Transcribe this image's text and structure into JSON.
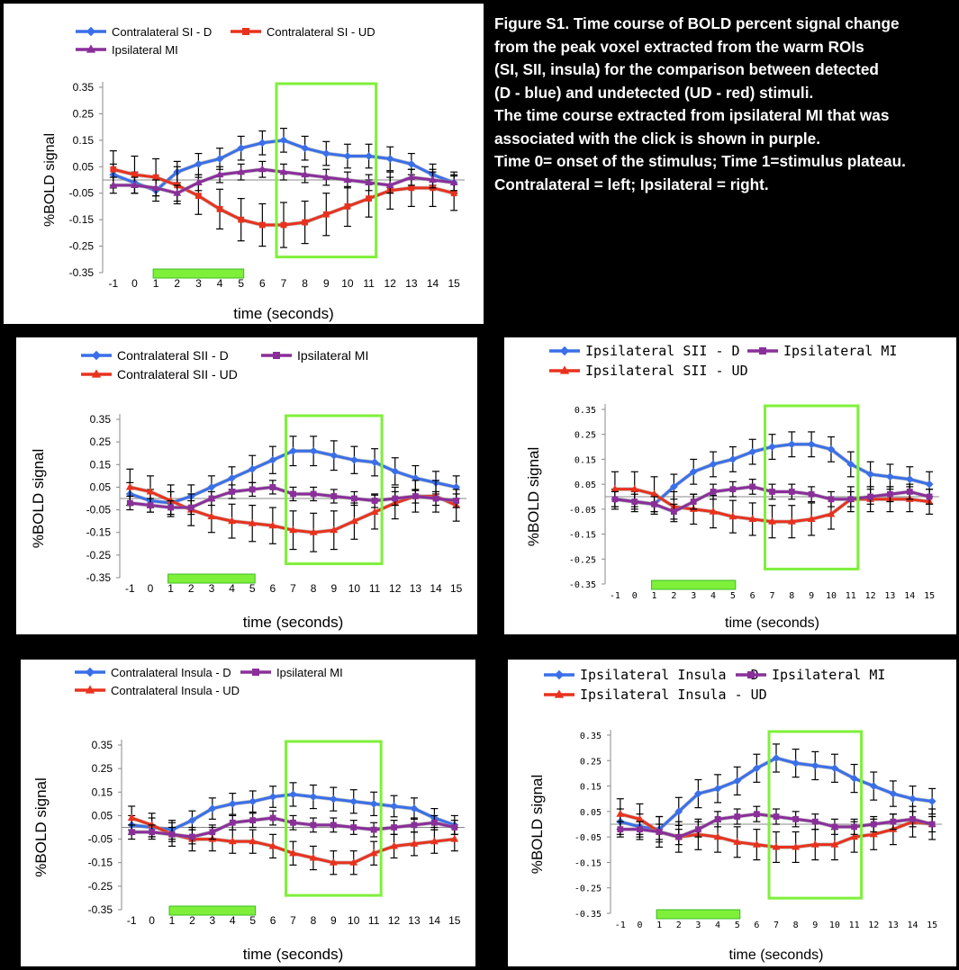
{
  "caption": {
    "lines": [
      "Figure S1. Time course of BOLD percent signal change",
      "from the peak voxel extracted from the warm ROIs",
      "(SI, SII, insula) for the comparison between  detected",
      "(D - blue) and undetected (UD - red) stimuli.",
      "The time course extracted from ipsilateral MI that was",
      "associated  with the click is shown in purple.",
      "Time 0= onset of the  stimulus; Time 1=stimulus plateau.",
      "Contralateral = left; Ipsilateral = right."
    ]
  },
  "colors": {
    "blue": "#3a6fe8",
    "red": "#e8321e",
    "purple": "#8a2f9a",
    "green": "#7ef03a",
    "errorbar": "#000000"
  },
  "chart_data": [
    {
      "id": "sI",
      "type": "line",
      "ylabel": "%BOLD signal",
      "xlabel": "time (seconds)",
      "ylim": [
        -0.35,
        0.35
      ],
      "yticks": [
        "0.35",
        "0.25",
        "0.15",
        "0.05",
        "-0.05",
        "-0.15",
        "-0.25",
        "-0.35"
      ],
      "x": [
        -1,
        0,
        1,
        2,
        3,
        4,
        5,
        6,
        7,
        8,
        9,
        10,
        11,
        12,
        13,
        14,
        15
      ],
      "stimulus_bar": [
        1,
        5
      ],
      "highlight_window": [
        7,
        11
      ],
      "series": [
        {
          "name": "Contralateral SI - D",
          "color": "blue",
          "marker": "diamond",
          "values": [
            0.02,
            -0.01,
            -0.04,
            0.03,
            0.06,
            0.08,
            0.12,
            0.14,
            0.15,
            0.12,
            0.1,
            0.09,
            0.09,
            0.08,
            0.06,
            0.02,
            -0.01
          ],
          "err": [
            0.04,
            0.04,
            0.04,
            0.04,
            0.04,
            0.04,
            0.045,
            0.045,
            0.045,
            0.045,
            0.045,
            0.045,
            0.045,
            0.045,
            0.04,
            0.04,
            0.04
          ]
        },
        {
          "name": "Contralateral SI - UD",
          "color": "red",
          "marker": "square",
          "values": [
            0.04,
            0.02,
            0.01,
            -0.02,
            -0.06,
            -0.11,
            -0.15,
            -0.17,
            -0.17,
            -0.16,
            -0.13,
            -0.1,
            -0.07,
            -0.04,
            -0.03,
            -0.03,
            -0.05
          ],
          "err": [
            0.07,
            0.07,
            0.07,
            0.07,
            0.07,
            0.075,
            0.08,
            0.08,
            0.085,
            0.08,
            0.08,
            0.075,
            0.07,
            0.07,
            0.07,
            0.07,
            0.065
          ]
        },
        {
          "name": "Ipsilateral MI",
          "color": "purple",
          "marker": "triangle",
          "values": [
            -0.02,
            -0.02,
            -0.03,
            -0.05,
            -0.01,
            0.02,
            0.03,
            0.04,
            0.03,
            0.02,
            0.01,
            0.0,
            -0.01,
            -0.02,
            0.01,
            0.0,
            -0.01
          ],
          "err": [
            0.03,
            0.03,
            0.03,
            0.03,
            0.03,
            0.03,
            0.03,
            0.03,
            0.03,
            0.03,
            0.03,
            0.03,
            0.03,
            0.03,
            0.03,
            0.03,
            0.03
          ]
        }
      ]
    },
    {
      "id": "cSII",
      "type": "line",
      "ylabel": "%BOLD signal",
      "xlabel": "time (seconds)",
      "ylim": [
        -0.35,
        0.35
      ],
      "yticks": [
        "0.35",
        "0.25",
        "0.15",
        "0.05",
        "-0.05",
        "-0.15",
        "-0.25",
        "-0.35"
      ],
      "x": [
        -1,
        0,
        1,
        2,
        3,
        4,
        5,
        6,
        7,
        8,
        9,
        10,
        11,
        12,
        13,
        14,
        15
      ],
      "stimulus_bar": [
        1,
        5
      ],
      "highlight_window": [
        7,
        11
      ],
      "series": [
        {
          "name": "Contralateral SII - D",
          "color": "blue",
          "marker": "diamond",
          "values": [
            0.02,
            -0.01,
            -0.02,
            0.01,
            0.05,
            0.09,
            0.13,
            0.17,
            0.21,
            0.21,
            0.19,
            0.17,
            0.16,
            0.12,
            0.09,
            0.07,
            0.05
          ],
          "err": [
            0.05,
            0.05,
            0.05,
            0.05,
            0.05,
            0.05,
            0.06,
            0.06,
            0.065,
            0.065,
            0.065,
            0.06,
            0.06,
            0.06,
            0.055,
            0.05,
            0.05
          ]
        },
        {
          "name": "Contralateral SII - UD",
          "color": "red",
          "marker": "triangle",
          "values": [
            0.05,
            0.03,
            -0.01,
            -0.05,
            -0.08,
            -0.1,
            -0.11,
            -0.12,
            -0.14,
            -0.15,
            -0.14,
            -0.1,
            -0.06,
            -0.02,
            0.01,
            0.01,
            -0.03
          ],
          "err": [
            0.08,
            0.07,
            0.07,
            0.07,
            0.07,
            0.075,
            0.08,
            0.08,
            0.085,
            0.085,
            0.085,
            0.08,
            0.075,
            0.07,
            0.07,
            0.07,
            0.07
          ]
        },
        {
          "name": "Ipsilateral MI",
          "color": "purple",
          "marker": "square",
          "values": [
            -0.02,
            -0.03,
            -0.04,
            -0.04,
            0.0,
            0.03,
            0.04,
            0.05,
            0.02,
            0.02,
            0.01,
            0.0,
            -0.01,
            0.0,
            0.01,
            0.0,
            -0.01
          ],
          "err": [
            0.03,
            0.03,
            0.03,
            0.03,
            0.03,
            0.03,
            0.03,
            0.03,
            0.03,
            0.03,
            0.03,
            0.03,
            0.03,
            0.03,
            0.03,
            0.03,
            0.03
          ]
        }
      ]
    },
    {
      "id": "iSII",
      "type": "line",
      "ylabel": "%BOLD signal",
      "xlabel": "time (seconds)",
      "ylim": [
        -0.35,
        0.35
      ],
      "yticks": [
        "0.35",
        "0.25",
        "0.15",
        "0.05",
        "-0.05",
        "-0.15",
        "-0.25",
        "-0.35"
      ],
      "x": [
        -1,
        0,
        1,
        2,
        3,
        4,
        5,
        6,
        7,
        8,
        9,
        10,
        11,
        12,
        13,
        14,
        15
      ],
      "stimulus_bar": [
        1,
        5
      ],
      "highlight_window": [
        7,
        11
      ],
      "series": [
        {
          "name": "Ipsilateral SII - D",
          "color": "blue",
          "marker": "diamond",
          "values": [
            -0.01,
            -0.02,
            -0.03,
            0.04,
            0.1,
            0.13,
            0.15,
            0.18,
            0.2,
            0.21,
            0.21,
            0.19,
            0.13,
            0.09,
            0.08,
            0.07,
            0.05
          ],
          "err": [
            0.04,
            0.04,
            0.04,
            0.05,
            0.05,
            0.05,
            0.05,
            0.05,
            0.05,
            0.05,
            0.05,
            0.05,
            0.05,
            0.05,
            0.05,
            0.05,
            0.05
          ]
        },
        {
          "name": "Ipsilateral SII - UD",
          "color": "red",
          "marker": "triangle",
          "values": [
            0.03,
            0.03,
            0.01,
            -0.04,
            -0.05,
            -0.06,
            -0.08,
            -0.09,
            -0.1,
            -0.1,
            -0.09,
            -0.07,
            -0.01,
            -0.01,
            -0.01,
            -0.01,
            -0.02
          ],
          "err": [
            0.07,
            0.07,
            0.07,
            0.06,
            0.06,
            0.065,
            0.065,
            0.065,
            0.065,
            0.065,
            0.065,
            0.06,
            0.05,
            0.05,
            0.05,
            0.05,
            0.05
          ]
        },
        {
          "name": "Ipsilateral MI",
          "color": "purple",
          "marker": "square",
          "values": [
            -0.01,
            -0.02,
            -0.03,
            -0.06,
            -0.02,
            0.02,
            0.03,
            0.04,
            0.02,
            0.02,
            0.01,
            -0.01,
            -0.01,
            0.0,
            0.01,
            0.02,
            0.0
          ],
          "err": [
            0.03,
            0.03,
            0.03,
            0.03,
            0.03,
            0.03,
            0.03,
            0.03,
            0.03,
            0.03,
            0.03,
            0.03,
            0.03,
            0.03,
            0.03,
            0.03,
            0.03
          ]
        }
      ]
    },
    {
      "id": "cIns",
      "type": "line",
      "ylabel": "%BOLD signal",
      "xlabel": "time (seconds)",
      "ylim": [
        -0.35,
        0.35
      ],
      "yticks": [
        "0.35",
        "0.25",
        "0.15",
        "0.05",
        "-0.05",
        "-0.15",
        "-0.25",
        "-0.35"
      ],
      "x": [
        -1,
        0,
        1,
        2,
        3,
        4,
        5,
        6,
        7,
        8,
        9,
        10,
        11,
        12,
        13,
        14,
        15
      ],
      "stimulus_bar": [
        1,
        5
      ],
      "highlight_window": [
        7,
        11
      ],
      "series": [
        {
          "name": "Contralateral Insula - D",
          "color": "blue",
          "marker": "diamond",
          "values": [
            0.01,
            0.0,
            -0.01,
            0.03,
            0.08,
            0.1,
            0.11,
            0.13,
            0.14,
            0.13,
            0.12,
            0.11,
            0.1,
            0.09,
            0.08,
            0.04,
            0.01
          ],
          "err": [
            0.04,
            0.04,
            0.04,
            0.04,
            0.045,
            0.045,
            0.045,
            0.045,
            0.05,
            0.05,
            0.05,
            0.05,
            0.05,
            0.045,
            0.045,
            0.04,
            0.04
          ]
        },
        {
          "name": "Contralateral Insula - UD",
          "color": "red",
          "marker": "triangle",
          "values": [
            0.04,
            0.01,
            -0.03,
            -0.05,
            -0.05,
            -0.06,
            -0.06,
            -0.08,
            -0.11,
            -0.13,
            -0.15,
            -0.15,
            -0.11,
            -0.08,
            -0.07,
            -0.06,
            -0.05
          ],
          "err": [
            0.05,
            0.05,
            0.05,
            0.05,
            0.05,
            0.05,
            0.05,
            0.05,
            0.05,
            0.05,
            0.05,
            0.05,
            0.05,
            0.05,
            0.05,
            0.05,
            0.05
          ]
        },
        {
          "name": "Ipsilateral MI",
          "color": "purple",
          "marker": "square",
          "values": [
            -0.02,
            -0.02,
            -0.03,
            -0.04,
            -0.02,
            0.02,
            0.03,
            0.04,
            0.02,
            0.01,
            0.01,
            0.0,
            -0.01,
            0.0,
            0.01,
            0.02,
            0.0
          ],
          "err": [
            0.03,
            0.03,
            0.03,
            0.03,
            0.03,
            0.03,
            0.03,
            0.03,
            0.03,
            0.03,
            0.03,
            0.03,
            0.03,
            0.03,
            0.03,
            0.03,
            0.03
          ]
        }
      ]
    },
    {
      "id": "iIns",
      "type": "line",
      "ylabel": "%BOLD signal",
      "xlabel": "time (seconds)",
      "ylim": [
        -0.35,
        0.35
      ],
      "yticks": [
        "0.35",
        "0.25",
        "0.15",
        "0.05",
        "-0.05",
        "-0.15",
        "-0.25",
        "-0.35"
      ],
      "x": [
        -1,
        0,
        1,
        2,
        3,
        4,
        5,
        6,
        7,
        8,
        9,
        10,
        11,
        12,
        13,
        14,
        15
      ],
      "stimulus_bar": [
        1,
        5
      ],
      "highlight_window": [
        7,
        11
      ],
      "series": [
        {
          "name": "Ipsilateral Insula - D",
          "color": "blue",
          "marker": "diamond",
          "values": [
            0.01,
            -0.01,
            -0.02,
            0.05,
            0.12,
            0.14,
            0.17,
            0.22,
            0.26,
            0.24,
            0.23,
            0.22,
            0.18,
            0.15,
            0.12,
            0.1,
            0.09
          ],
          "err": [
            0.05,
            0.05,
            0.05,
            0.055,
            0.055,
            0.055,
            0.055,
            0.055,
            0.055,
            0.055,
            0.055,
            0.055,
            0.055,
            0.055,
            0.05,
            0.05,
            0.05
          ]
        },
        {
          "name": "Ipsilateral Insula - UD",
          "color": "red",
          "marker": "triangle",
          "values": [
            0.04,
            0.02,
            -0.03,
            -0.05,
            -0.04,
            -0.05,
            -0.07,
            -0.08,
            -0.09,
            -0.09,
            -0.08,
            -0.08,
            -0.05,
            -0.04,
            -0.02,
            0.01,
            0.0
          ],
          "err": [
            0.06,
            0.06,
            0.06,
            0.06,
            0.06,
            0.06,
            0.06,
            0.06,
            0.06,
            0.06,
            0.06,
            0.06,
            0.06,
            0.06,
            0.06,
            0.06,
            0.06
          ]
        },
        {
          "name": "Ipsilateral MI",
          "color": "purple",
          "marker": "square",
          "values": [
            -0.02,
            -0.02,
            -0.03,
            -0.05,
            -0.02,
            0.02,
            0.03,
            0.04,
            0.03,
            0.02,
            0.01,
            -0.01,
            -0.01,
            0.0,
            0.01,
            0.02,
            0.0
          ],
          "err": [
            0.03,
            0.03,
            0.03,
            0.03,
            0.03,
            0.03,
            0.03,
            0.03,
            0.03,
            0.03,
            0.03,
            0.03,
            0.03,
            0.03,
            0.03,
            0.03,
            0.03
          ]
        }
      ]
    }
  ]
}
